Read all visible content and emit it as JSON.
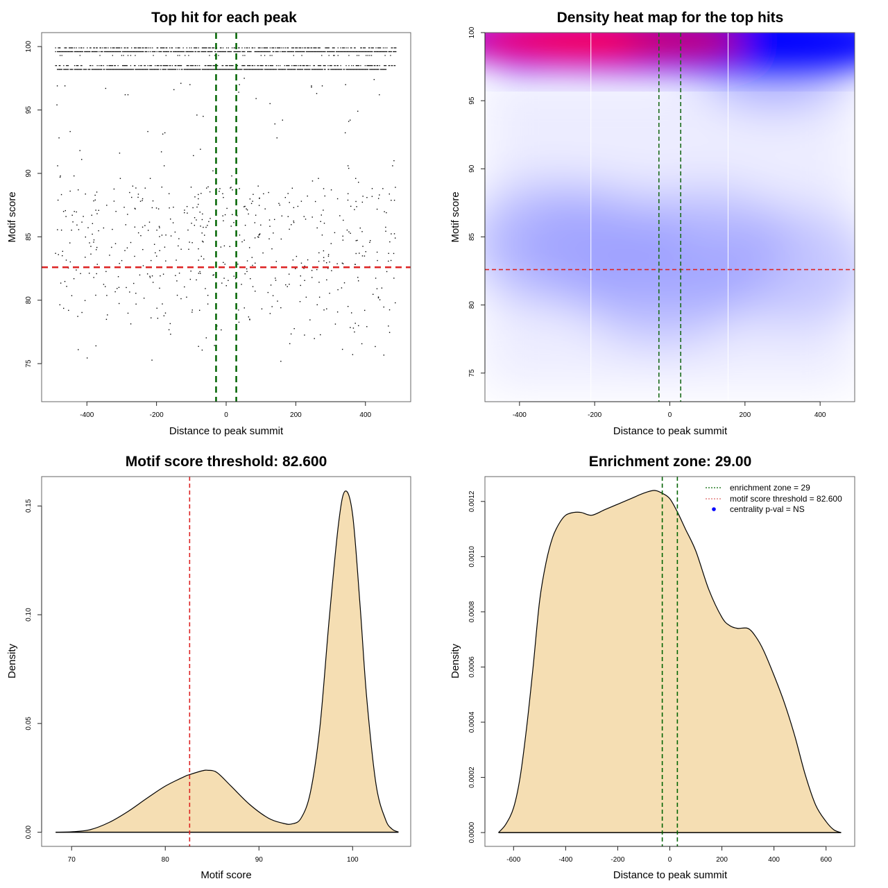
{
  "chart_data": [
    {
      "id": "scatter",
      "type": "scatter",
      "title": "Top hit for each peak",
      "xlabel": "Distance to peak summit",
      "ylabel": "Motif score",
      "xlim": [
        -530,
        530
      ],
      "ylim": [
        72,
        101.1
      ],
      "xticks": [
        -400,
        -200,
        0,
        200,
        400
      ],
      "xtick_labels": [
        "-400",
        "-200",
        "0",
        "200",
        "400"
      ],
      "yticks": [
        75,
        80,
        85,
        90,
        95,
        100
      ],
      "ytick_labels": [
        "75",
        "80",
        "85",
        "90",
        "95",
        "100"
      ],
      "grid": false,
      "hlines": [
        {
          "y": 82.6,
          "color": "#dd2222",
          "style": "dashed",
          "label": "motif score threshold"
        }
      ],
      "vlines": [
        {
          "x": -29,
          "color": "#006400",
          "style": "dashed"
        },
        {
          "x": 29,
          "color": "#006400",
          "style": "dashed"
        }
      ],
      "dense_rows": [
        {
          "y": 99.9,
          "x_range": [
            -490,
            490
          ],
          "density": "medium"
        },
        {
          "y": 99.6,
          "x_range": [
            -490,
            490
          ],
          "density": "high"
        },
        {
          "y": 99.3,
          "x_range": [
            -490,
            480
          ],
          "density": "sparse"
        },
        {
          "y": 98.5,
          "x_range": [
            -490,
            490
          ],
          "density": "medium"
        },
        {
          "y": 98.2,
          "x_range": [
            -490,
            460
          ],
          "density": "high"
        }
      ],
      "points": [
        [
          -485,
          96.9
        ],
        [
          -486,
          95.4
        ],
        [
          -480,
          92.8
        ],
        [
          -484,
          90.6
        ],
        [
          -476,
          89.8
        ],
        [
          -477,
          89.7
        ],
        [
          -448,
          93.3
        ],
        [
          -463,
          96.9
        ],
        [
          -346,
          96.7
        ],
        [
          -290,
          96.2
        ],
        [
          -282,
          96.2
        ],
        [
          -150,
          96.6
        ],
        [
          -130,
          97.1
        ],
        [
          -104,
          97.0
        ],
        [
          -84,
          94.6
        ],
        [
          -66,
          94.5
        ],
        [
          -176,
          93.2
        ],
        [
          -182,
          93.1
        ],
        [
          -186,
          91.7
        ],
        [
          -225,
          93.3
        ],
        [
          -38,
          90.2
        ],
        [
          -74,
          91.9
        ],
        [
          -94,
          91.4
        ],
        [
          -178,
          90.6
        ],
        [
          -218,
          89.6
        ],
        [
          -304,
          89.6
        ],
        [
          -306,
          91.6
        ],
        [
          -420,
          91.8
        ],
        [
          -415,
          91.1
        ],
        [
          -437,
          89.8
        ],
        [
          -448,
          88.6
        ],
        [
          -425,
          88.7
        ],
        [
          -376,
          87.9
        ],
        [
          -386,
          86.7
        ],
        [
          -436,
          87.0
        ],
        [
          -442,
          86.7
        ],
        [
          -460,
          86.6
        ],
        [
          -467,
          87.0
        ],
        [
          -240,
          88.0
        ],
        [
          -246,
          87.8
        ],
        [
          -194,
          87.2
        ],
        [
          -164,
          88.4
        ],
        [
          -160,
          86.4
        ],
        [
          -120,
          86.9
        ],
        [
          -80,
          88.0
        ],
        [
          -68,
          86.8
        ],
        [
          -54,
          85.9
        ],
        [
          -50,
          86.2
        ],
        [
          -28,
          88.8
        ],
        [
          -18,
          88.8
        ],
        [
          -10,
          88.4
        ],
        [
          -8,
          88.1
        ],
        [
          14,
          88.9
        ],
        [
          16,
          89.8
        ],
        [
          18,
          88.7
        ],
        [
          36,
          96.4
        ],
        [
          38,
          97.0
        ],
        [
          52,
          97.5
        ],
        [
          86,
          95.9
        ],
        [
          126,
          95.5
        ],
        [
          140,
          93.9
        ],
        [
          146,
          92.8
        ],
        [
          162,
          94.2
        ],
        [
          260,
          96.3
        ],
        [
          245,
          96.8
        ],
        [
          245,
          96.9
        ],
        [
          276,
          96.9
        ],
        [
          343,
          97.0
        ],
        [
          378,
          94.9
        ],
        [
          352,
          94.1
        ],
        [
          356,
          94.2
        ],
        [
          342,
          93.2
        ],
        [
          350,
          90.6
        ],
        [
          352,
          90.4
        ],
        [
          425,
          97.4
        ],
        [
          440,
          96.2
        ],
        [
          482,
          91.0
        ],
        [
          478,
          90.6
        ],
        [
          486,
          88.9
        ],
        [
          440,
          88.3
        ],
        [
          380,
          89.3
        ],
        [
          372,
          89.6
        ],
        [
          350,
          88.4
        ],
        [
          320,
          88.0
        ],
        [
          302,
          88.7
        ],
        [
          280,
          88.8
        ],
        [
          265,
          89.6
        ],
        [
          248,
          89.4
        ],
        [
          216,
          87.8
        ],
        [
          206,
          87.4
        ],
        [
          194,
          87.3
        ],
        [
          170,
          88.1
        ],
        [
          154,
          87.5
        ],
        [
          112,
          87.2
        ],
        [
          92,
          89.0
        ],
        [
          76,
          87.8
        ],
        [
          64,
          86.8
        ],
        [
          58,
          87.2
        ],
        [
          54,
          87.4
        ],
        [
          38,
          88.8
        ],
        [
          450,
          88.8
        ],
        [
          460,
          86.9
        ]
      ],
      "point_cloud_note": "approx. 900 additional scattered points between 72 and 89 across full x range"
    },
    {
      "id": "heatmap",
      "type": "heatmap",
      "title": "Density heat map for the top hits",
      "xlabel": "Distance to peak summit",
      "ylabel": "Motif score",
      "xlim": [
        -492,
        492
      ],
      "ylim": [
        72.9,
        100
      ],
      "xticks": [
        -400,
        -200,
        0,
        200,
        400
      ],
      "xtick_labels": [
        "-400",
        "-200",
        "0",
        "200",
        "400"
      ],
      "yticks": [
        75,
        80,
        85,
        90,
        95,
        100
      ],
      "ytick_labels": [
        "75",
        "80",
        "85",
        "90",
        "95",
        "100"
      ],
      "colormap": [
        "#ffffff",
        "#0000ff",
        "#ff0000"
      ],
      "hlines": [
        {
          "y": 82.6,
          "color": "#dd2222",
          "style": "dashed"
        }
      ],
      "vlines": [
        {
          "x": -29,
          "color": "#1a6b1a",
          "style": "dashed"
        },
        {
          "x": 29,
          "color": "#1a6b1a",
          "style": "dashed"
        }
      ],
      "separators_x": [
        -210,
        155
      ],
      "hotspots": [
        {
          "x": -300,
          "y": 99.0,
          "level": 1.0
        },
        {
          "x": -100,
          "y": 99.0,
          "level": 1.0
        },
        {
          "x": 50,
          "y": 99.0,
          "level": 0.75
        },
        {
          "x": 280,
          "y": 99.0,
          "level": 0.45
        },
        {
          "x": -320,
          "y": 84.6,
          "level": 0.32
        },
        {
          "x": -180,
          "y": 84.2,
          "level": 0.32
        },
        {
          "x": -20,
          "y": 81.5,
          "level": 0.3
        },
        {
          "x": 100,
          "y": 84.2,
          "level": 0.3
        },
        {
          "x": 330,
          "y": 82.8,
          "level": 0.24
        }
      ]
    },
    {
      "id": "score-density",
      "type": "area",
      "title": "Motif score threshold: 82.600",
      "xlabel": "Motif score",
      "ylabel": "Density",
      "xlim": [
        66.8,
        106.2
      ],
      "ylim": [
        -0.0065,
        0.1635
      ],
      "xticks": [
        70,
        80,
        90,
        100
      ],
      "xtick_labels": [
        "70",
        "80",
        "90",
        "100"
      ],
      "yticks": [
        0.0,
        0.05,
        0.1,
        0.15
      ],
      "ytick_labels": [
        "0.00",
        "0.05",
        "0.10",
        "0.15"
      ],
      "fill": "#f5deb3",
      "vlines": [
        {
          "x": 82.6,
          "color": "#dd2222",
          "style": "dashed"
        }
      ],
      "x": [
        68.3,
        70,
        72,
        74,
        76,
        78,
        80,
        82,
        82.6,
        84,
        84.5,
        85.5,
        87,
        89,
        91,
        92.5,
        93.5,
        94.5,
        95.5,
        96.5,
        97.5,
        98.5,
        99.2,
        100,
        100.8,
        101.5,
        102.5,
        103.5,
        104.2,
        104.9
      ],
      "y": [
        0.0,
        0.0002,
        0.0012,
        0.0045,
        0.0095,
        0.0155,
        0.0212,
        0.0255,
        0.0265,
        0.0283,
        0.0285,
        0.0275,
        0.0213,
        0.0128,
        0.0065,
        0.0042,
        0.0038,
        0.0065,
        0.0185,
        0.048,
        0.098,
        0.142,
        0.1568,
        0.146,
        0.104,
        0.062,
        0.022,
        0.006,
        0.0015,
        0.0001
      ]
    },
    {
      "id": "distance-density",
      "type": "area",
      "title": "Enrichment zone: 29.00",
      "xlabel": "Distance to peak summit",
      "ylabel": "Density",
      "xlim": [
        -710,
        710
      ],
      "ylim": [
        -5e-05,
        0.00129
      ],
      "xticks": [
        -600,
        -400,
        -200,
        0,
        200,
        400,
        600
      ],
      "xtick_labels": [
        "-600",
        "-400",
        "-200",
        "0",
        "200",
        "400",
        "600"
      ],
      "yticks": [
        0.0,
        0.0002,
        0.0004,
        0.0006,
        0.0008,
        0.001,
        0.0012
      ],
      "ytick_labels": [
        "0.0000",
        "0.0002",
        "0.0004",
        "0.0006",
        "0.0008",
        "0.0010",
        "0.0012"
      ],
      "fill": "#f5deb3",
      "vlines": [
        {
          "x": -29,
          "color": "#006400",
          "style": "dashed"
        },
        {
          "x": 29,
          "color": "#006400",
          "style": "dashed"
        }
      ],
      "x": [
        -658,
        -630,
        -600,
        -575,
        -550,
        -525,
        -500,
        -475,
        -450,
        -425,
        -400,
        -370,
        -340,
        -300,
        -250,
        -200,
        -150,
        -100,
        -60,
        -30,
        0,
        30,
        60,
        100,
        150,
        200,
        230,
        260,
        300,
        330,
        360,
        400,
        440,
        480,
        520,
        560,
        600,
        630,
        658
      ],
      "y": [
        0.0,
        3e-05,
        9e-05,
        0.0002,
        0.00038,
        0.0006,
        0.00084,
        0.00098,
        0.00107,
        0.00112,
        0.00115,
        0.00116,
        0.00116,
        0.00115,
        0.00117,
        0.00119,
        0.00121,
        0.00123,
        0.00124,
        0.00123,
        0.00121,
        0.00116,
        0.0011,
        0.00102,
        0.00088,
        0.00078,
        0.00075,
        0.00074,
        0.00074,
        0.00071,
        0.00066,
        0.00057,
        0.00047,
        0.00035,
        0.00021,
        0.0001,
        4e-05,
        1e-05,
        0.0
      ],
      "legend": {
        "placement": "top-right",
        "entries": [
          {
            "label": "enrichment zone = 29",
            "color": "#006400",
            "kind": "dotted-line"
          },
          {
            "label": "motif score threshold = 82.600",
            "color": "#dd6666",
            "kind": "dotted-line"
          },
          {
            "label": "centrality p-val = NS",
            "color": "#0000ff",
            "kind": "point"
          }
        ]
      }
    }
  ]
}
